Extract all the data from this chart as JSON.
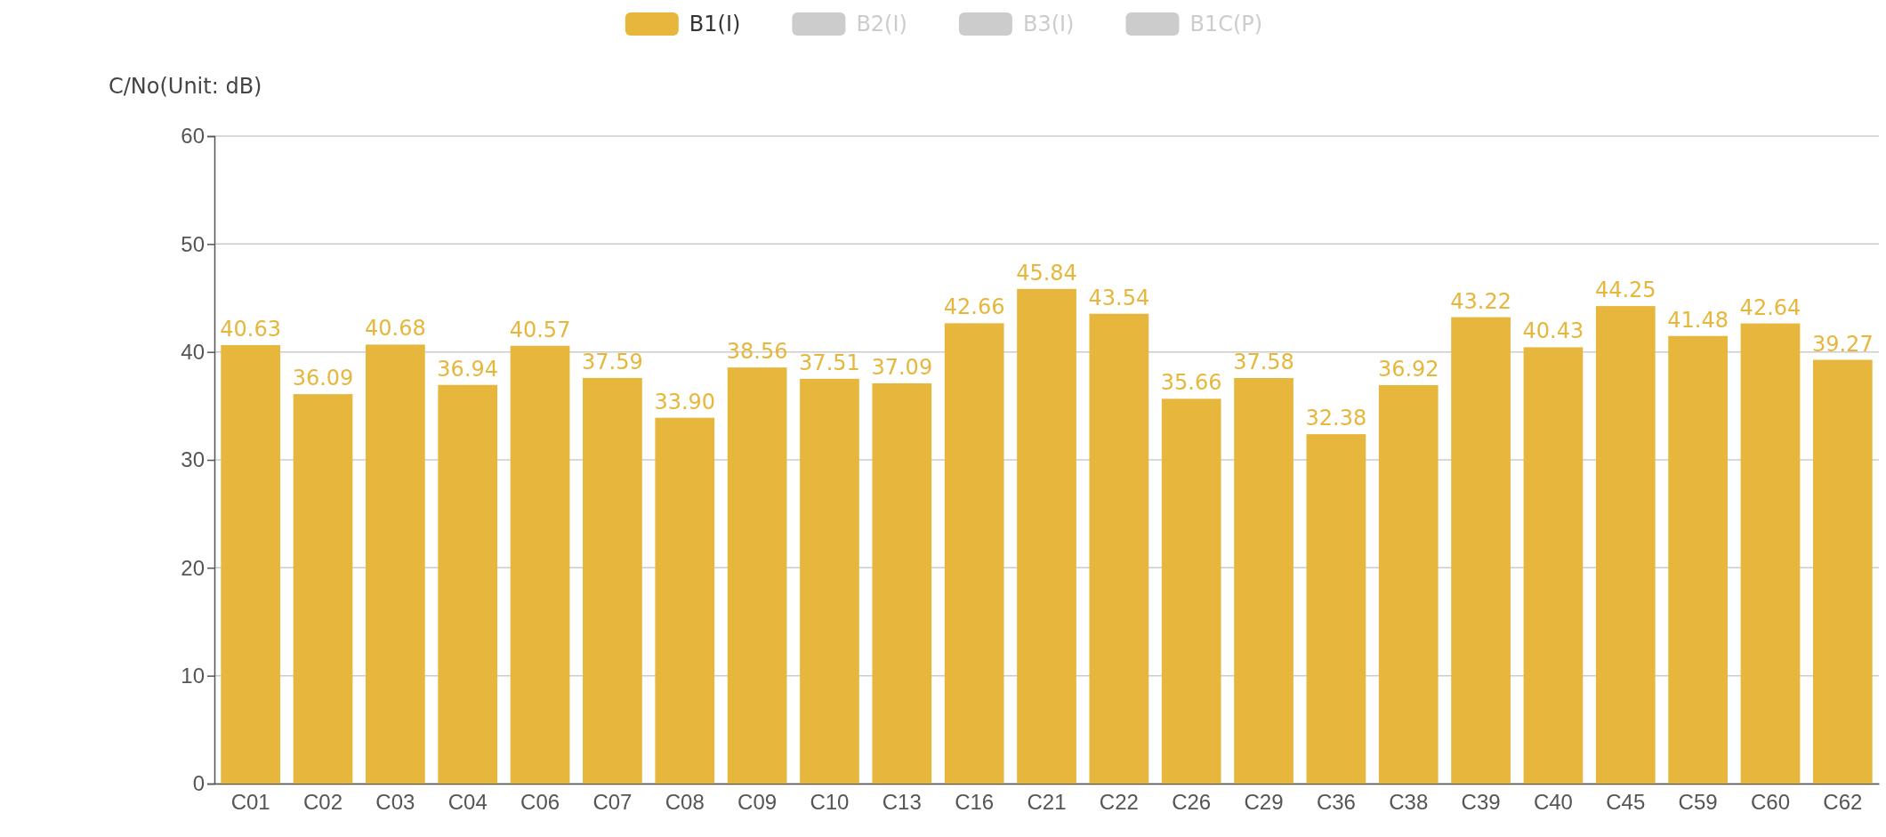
{
  "chart_data": {
    "type": "bar",
    "ylabel": "C/No(Unit: dB)",
    "categories": [
      "C01",
      "C02",
      "C03",
      "C04",
      "C06",
      "C07",
      "C08",
      "C09",
      "C10",
      "C13",
      "C16",
      "C21",
      "C22",
      "C26",
      "C29",
      "C36",
      "C38",
      "C39",
      "C40",
      "C45",
      "C59",
      "C60",
      "C62"
    ],
    "series": [
      {
        "name": "B1(I)",
        "color": "#e6b73c",
        "values": [
          40.63,
          36.09,
          40.68,
          36.94,
          40.57,
          37.59,
          33.9,
          38.56,
          37.51,
          37.09,
          42.66,
          45.84,
          43.54,
          35.66,
          37.58,
          32.38,
          36.92,
          43.22,
          40.43,
          44.25,
          41.48,
          42.64,
          39.27
        ],
        "value_labels": [
          "40.63",
          "36.09",
          "40.68",
          "36.94",
          "40.57",
          "37.59",
          "33.90",
          "38.56",
          "37.51",
          "37.09",
          "42.66",
          "45.84",
          "43.54",
          "35.66",
          "37.58",
          "32.38",
          "36.92",
          "43.22",
          "40.43",
          "44.25",
          "41.48",
          "42.64",
          "39.27"
        ]
      },
      {
        "name": "B2(I)",
        "color": "#cccccc",
        "values": [
          null,
          null,
          null,
          null,
          null,
          null,
          null,
          null,
          null,
          null,
          null,
          null,
          null,
          null,
          null,
          null,
          null,
          null,
          null,
          null,
          null,
          null,
          null
        ]
      },
      {
        "name": "B3(I)",
        "color": "#cccccc",
        "values": [
          null,
          null,
          null,
          null,
          null,
          null,
          null,
          null,
          null,
          null,
          null,
          null,
          null,
          null,
          null,
          null,
          null,
          null,
          null,
          null,
          null,
          null,
          null
        ]
      },
      {
        "name": "B1C(P)",
        "color": "#cccccc",
        "values": [
          null,
          null,
          null,
          null,
          null,
          null,
          null,
          null,
          null,
          null,
          null,
          null,
          null,
          null,
          null,
          null,
          null,
          null,
          null,
          null,
          null,
          null,
          null
        ]
      }
    ],
    "ylim": [
      0,
      60
    ],
    "yticks": [
      0,
      10,
      20,
      30,
      40,
      50,
      60
    ],
    "grid": "y",
    "legend": "top"
  }
}
